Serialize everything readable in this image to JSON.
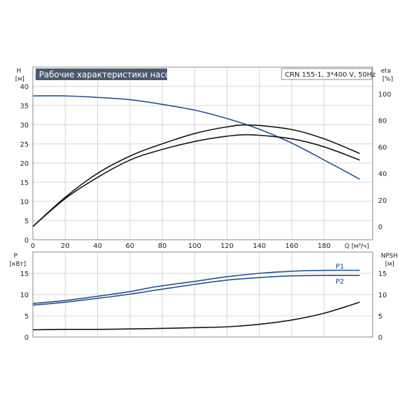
{
  "chart_data": [
    {
      "type": "line",
      "title": "Рабочие характеристики насоса",
      "info": "CRN 155-1, 3*400 V, 50Hz",
      "xlabel": "Q [м³/ч]",
      "ylabel_left_name": "H",
      "ylabel_left_unit": "[м]",
      "ylabel_right_name": "eta",
      "ylabel_right_unit": "[%]",
      "xlim": [
        0,
        210
      ],
      "ylim_left": [
        0,
        45
      ],
      "ylim_right": [
        -10,
        120
      ],
      "x_ticks": [
        "0",
        "20",
        "40",
        "60",
        "80",
        "100",
        "120",
        "140",
        "160",
        "180"
      ],
      "x_tick_values": [
        0,
        20,
        40,
        60,
        80,
        100,
        120,
        140,
        160,
        180
      ],
      "y_ticks_left": [
        "0",
        "5",
        "10",
        "15",
        "20",
        "25",
        "30",
        "35",
        "40"
      ],
      "y_tick_values_left": [
        0,
        5,
        10,
        15,
        20,
        25,
        30,
        35,
        40
      ],
      "y_ticks_right": [
        "0",
        "20",
        "40",
        "60",
        "80",
        "100"
      ],
      "y_tick_values_right": [
        0,
        20,
        40,
        60,
        80,
        100
      ],
      "grid": true,
      "series": [
        {
          "axis": "left",
          "color": "#1f4f8f",
          "x": [
            0,
            20,
            40,
            60,
            77,
            100,
            120,
            140,
            160,
            180,
            202
          ],
          "values": [
            37.5,
            37.5,
            37.1,
            36.5,
            35.5,
            33.8,
            31.6,
            28.8,
            25.2,
            20.8,
            15.8
          ]
        },
        {
          "axis": "right",
          "color": "#111111",
          "x": [
            0,
            20,
            40,
            60,
            77,
            100,
            120,
            135,
            160,
            180,
            202
          ],
          "values": [
            0,
            22,
            40,
            53,
            61,
            70,
            75,
            76.4,
            73,
            66,
            55
          ]
        },
        {
          "axis": "right",
          "color": "#111111",
          "x": [
            0,
            20,
            40,
            60,
            77,
            100,
            120,
            135,
            160,
            180,
            202
          ],
          "values": [
            0,
            21,
            37,
            50,
            57,
            64,
            68,
            69,
            66,
            60,
            50
          ]
        }
      ]
    },
    {
      "type": "line",
      "ylabel_left_name": "P",
      "ylabel_left_unit": "[кВт]",
      "ylabel_right_name": "NPSH",
      "ylabel_right_unit": "[м]",
      "xlim": [
        0,
        210
      ],
      "ylim_left": [
        0,
        20
      ],
      "ylim_right": [
        0,
        20
      ],
      "x_tick_values": [
        0,
        20,
        40,
        60,
        80,
        100,
        120,
        140,
        160,
        180
      ],
      "y_ticks_left": [
        "0",
        "5",
        "10",
        "15"
      ],
      "y_tick_values_left": [
        0,
        5,
        10,
        15
      ],
      "y_ticks_right": [
        "0",
        "5",
        "10",
        "15"
      ],
      "y_tick_values_right": [
        0,
        5,
        10,
        15
      ],
      "grid": true,
      "series": [
        {
          "name": "P1",
          "axis": "left",
          "color": "#1f4f8f",
          "x": [
            0,
            20,
            40,
            60,
            77,
            100,
            120,
            140,
            160,
            180,
            202
          ],
          "values": [
            7.9,
            8.6,
            9.6,
            10.7,
            11.9,
            13.1,
            14.2,
            15.0,
            15.5,
            15.7,
            15.7
          ]
        },
        {
          "name": "P2",
          "axis": "left",
          "color": "#1f4f8f",
          "x": [
            0,
            20,
            40,
            60,
            77,
            100,
            120,
            140,
            160,
            180,
            202
          ],
          "values": [
            7.5,
            8.2,
            9.1,
            10.1,
            11.1,
            12.4,
            13.4,
            14.0,
            14.4,
            14.5,
            14.5
          ]
        },
        {
          "axis": "right",
          "color": "#111111",
          "x": [
            0,
            20,
            40,
            60,
            77,
            100,
            120,
            140,
            160,
            180,
            202
          ],
          "values": [
            1.7,
            1.8,
            1.8,
            1.9,
            2.0,
            2.2,
            2.4,
            3.0,
            4.0,
            5.6,
            8.2
          ]
        }
      ]
    }
  ]
}
